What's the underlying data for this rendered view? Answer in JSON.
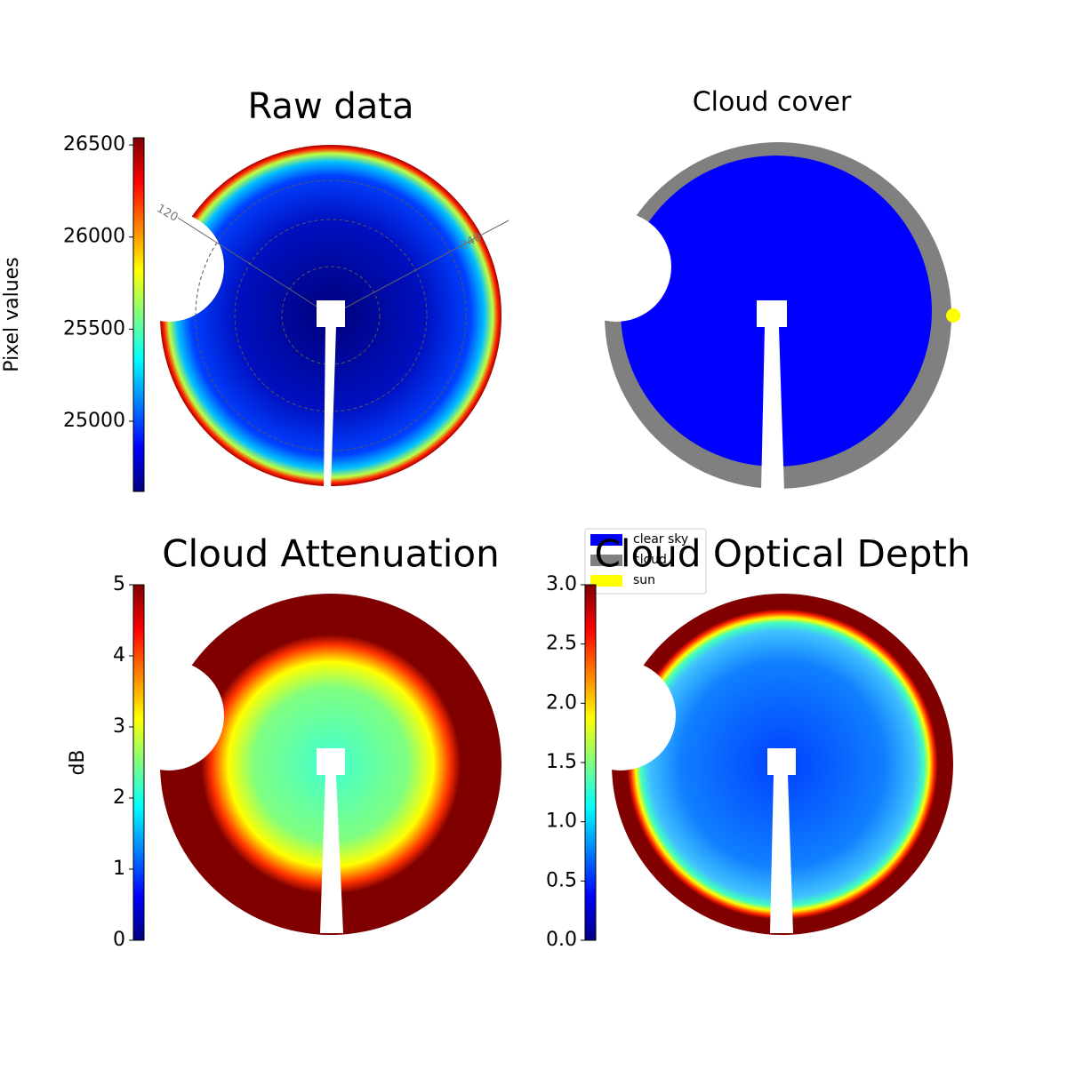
{
  "chart_data": [
    {
      "type": "image",
      "title": "Raw data",
      "ylabel": "Pixel values",
      "ylim": [
        24619,
        26539
      ],
      "yticks": [
        25000,
        25500,
        26000,
        26500
      ],
      "annotations": [
        "120",
        "240"
      ]
    },
    {
      "type": "image",
      "title": "Cloud cover",
      "series": [
        {
          "name": "clear sky",
          "color": "#0000ff"
        },
        {
          "name": "cloud",
          "color": "#808080"
        },
        {
          "name": "sun",
          "color": "#ffff00"
        }
      ]
    },
    {
      "type": "image",
      "title": "Cloud Attenuation",
      "ylabel": "dB",
      "ylim": [
        0,
        5
      ],
      "yticks": [
        0,
        1,
        2,
        3,
        4,
        5
      ]
    },
    {
      "type": "image",
      "title": "Cloud Optical Depth",
      "ylim": [
        0,
        3
      ],
      "yticks": [
        {
          "value": 0,
          "label": "0.0"
        },
        0.5,
        {
          "value": 1,
          "label": "1.0"
        },
        1.5,
        {
          "value": 2,
          "label": "2.0"
        },
        2.5,
        {
          "value": 3,
          "label": "3.0"
        }
      ]
    }
  ]
}
